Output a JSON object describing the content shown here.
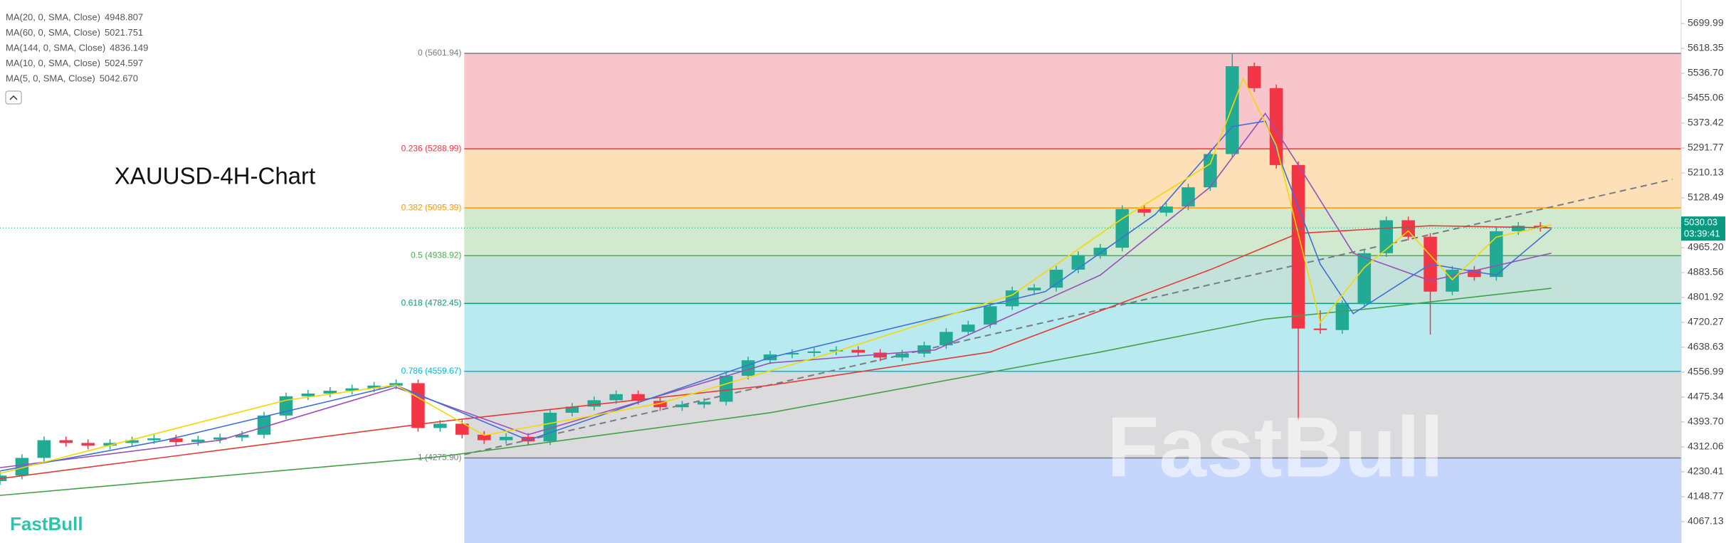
{
  "chart_data": {
    "type": "candlestick",
    "title": "XAUUSD-4H-Chart",
    "ylim": [
      3997,
      5777
    ],
    "xlim": [
      0,
      76.4
    ],
    "yticks": [
      5699.99,
      5618.35,
      {
        "value": 5536.7,
        "label": "5536.70"
      },
      5455.06,
      5373.42,
      5291.77,
      5210.13,
      5128.49,
      {
        "value": 4965.2,
        "label": "4965.20"
      },
      4883.56,
      4801.92,
      4720.27,
      4638.63,
      4556.99,
      4475.34,
      {
        "value": 4393.7,
        "label": "4393.70"
      },
      4312.06,
      4230.41,
      4148.77,
      4067.13
    ],
    "up_color": "#22ab94",
    "down_color": "#f23645",
    "candles": {
      "open": [
        4200,
        4218,
        4276,
        4334,
        4325,
        4316,
        4325,
        4334,
        4340,
        4328,
        4336,
        4343,
        4352,
        4415,
        4478,
        4487,
        4496,
        4504,
        4513,
        4521,
        4374,
        4388,
        4352,
        4334,
        4345,
        4330,
        4424,
        4444,
        4465,
        4485,
        4463,
        4442,
        4451,
        4460,
        4545,
        4596,
        4615,
        4620,
        4625,
        4630,
        4621,
        4605,
        4618,
        4645,
        4689,
        4713,
        4773,
        4825,
        4834,
        4893,
        4941,
        4965,
        5092,
        5080,
        5100,
        5163,
        5272,
        5560,
        5488,
        5236,
        4700,
        4695,
        4780,
        4947,
        5055,
        5001,
        4821,
        4893,
        4869,
        5019,
        5037
      ],
      "high": [
        4230,
        4288,
        4346,
        4346,
        4337,
        4337,
        4346,
        4352,
        4352,
        4348,
        4355,
        4364,
        4427,
        4490,
        4499,
        4508,
        4516,
        4525,
        4533,
        4533,
        4400,
        4400,
        4364,
        4357,
        4357,
        4436,
        4456,
        4477,
        4497,
        4497,
        4475,
        4463,
        4472,
        4557,
        4608,
        4627,
        4632,
        4637,
        4642,
        4642,
        4633,
        4630,
        4657,
        4701,
        4725,
        4785,
        4837,
        4846,
        4905,
        4953,
        4977,
        5104,
        5104,
        5112,
        5175,
        5284,
        5602,
        5572,
        5500,
        5248,
        4760,
        4792,
        4959,
        5067,
        5067,
        5013,
        4905,
        4905,
        5031,
        5049,
        5049
      ],
      "low": [
        4188,
        4206,
        4264,
        4313,
        4304,
        4304,
        4313,
        4322,
        4316,
        4316,
        4324,
        4331,
        4340,
        4403,
        4466,
        4475,
        4484,
        4492,
        4501,
        4362,
        4362,
        4340,
        4322,
        4322,
        4318,
        4318,
        4412,
        4432,
        4453,
        4451,
        4430,
        4430,
        4439,
        4448,
        4533,
        4584,
        4603,
        4608,
        4613,
        4609,
        4593,
        4593,
        4606,
        4633,
        4677,
        4701,
        4761,
        4813,
        4822,
        4881,
        4929,
        4953,
        5068,
        5068,
        5088,
        5151,
        5260,
        5476,
        5224,
        4400,
        4683,
        4683,
        4768,
        4935,
        4989,
        4680,
        4809,
        4857,
        4857,
        5007,
        5018
      ],
      "close": [
        4218,
        4276,
        4334,
        4325,
        4316,
        4325,
        4334,
        4340,
        4328,
        4336,
        4343,
        4352,
        4415,
        4478,
        4487,
        4496,
        4504,
        4513,
        4521,
        4374,
        4388,
        4352,
        4334,
        4345,
        4330,
        4424,
        4444,
        4465,
        4485,
        4463,
        4442,
        4451,
        4460,
        4545,
        4596,
        4615,
        4620,
        4625,
        4630,
        4621,
        4605,
        4618,
        4645,
        4689,
        4713,
        4773,
        4825,
        4834,
        4893,
        4941,
        4965,
        5092,
        5080,
        5100,
        5163,
        5272,
        5560,
        5488,
        5236,
        4700,
        4695,
        4780,
        4947,
        5055,
        5001,
        4821,
        4893,
        4869,
        5019,
        5037,
        5030.03
      ]
    },
    "series": [
      {
        "name": "MA(20, 0, SMA, Close)",
        "color": "#9c4fb8",
        "value_label": "4948.807",
        "x": [
          0,
          10,
          18,
          24,
          35,
          42.5,
          50,
          55,
          57.5,
          59,
          61.5,
          65,
          70.5
        ],
        "values": [
          4244,
          4334,
          4507,
          4352,
          4587,
          4630,
          4875,
          5164,
          5405,
          5236,
          4947,
          4857,
          4947
        ]
      },
      {
        "name": "MA(60, 0, SMA, Close)",
        "color": "#e53935",
        "value_label": "5021.751",
        "x": [
          0,
          20,
          35,
          45,
          55,
          59,
          65,
          70.5
        ],
        "values": [
          4208,
          4395,
          4514,
          4623,
          4893,
          5012,
          5037,
          5030
        ]
      },
      {
        "name": "MA(144, 0, SMA, Close)",
        "color": "#43a047",
        "value_label": "4836.149",
        "x": [
          0,
          20,
          35,
          50,
          57.5,
          62.5,
          70.5
        ],
        "values": [
          4153,
          4280,
          4424,
          4623,
          4731,
          4767,
          4832
        ]
      },
      {
        "name": "MA(10, 0, SMA, Close)",
        "color": "#3f6fd8",
        "value_label": "5024.597",
        "x": [
          0,
          7.5,
          18,
          24,
          35,
          47.5,
          52.5,
          56,
          57.5,
          60,
          61.5,
          65,
          68,
          70.5
        ],
        "values": [
          4233,
          4334,
          4514,
          4334,
          4605,
          4821,
          5074,
          5362,
          5380,
          4911,
          4749,
          4911,
          4875,
          5027
        ]
      },
      {
        "name": "MA(5, 0, SMA, Close)",
        "color": "#f5d800",
        "value_label": "5042.670",
        "x": [
          0,
          13,
          18,
          22,
          30,
          38,
          46,
          51,
          55,
          56.5,
          58,
          60,
          62,
          64,
          66,
          68,
          70.5
        ],
        "values": [
          4225,
          4465,
          4515,
          4350,
          4455,
          4625,
          4810,
          5060,
          5240,
          5520,
          5300,
          4720,
          4900,
          5020,
          4860,
          5000,
          5040
        ]
      }
    ],
    "fib": {
      "start_x": 21.1,
      "below_fill": "#c5d5fb",
      "levels": [
        {
          "label": "0 (5601.94)",
          "value": 5601.94,
          "color": "#787b86",
          "fill": "#f8c5cb"
        },
        {
          "label": "0.236 (5288.99)",
          "value": 5288.99,
          "color": "#f23645",
          "fill": "#fde0b8"
        },
        {
          "label": "0.382 (5095.39)",
          "value": 5095.39,
          "color": "#ff9800",
          "fill": "#d0e9cf"
        },
        {
          "label": "0.5 (4938.92)",
          "value": 4938.92,
          "color": "#4caf50",
          "fill": "#c3e3da"
        },
        {
          "label": "0.618 (4782.45)",
          "value": 4782.45,
          "color": "#089981",
          "fill": "#b9eaf0"
        },
        {
          "label": "0.786 (4559.67)",
          "value": 4559.67,
          "color": "#00bcd4",
          "fill": "#dbdbdd"
        },
        {
          "label": "1 (4275.90)",
          "value": 4275.9,
          "color": "#787b86",
          "fill": "#c5d5fb"
        }
      ]
    },
    "trendline": {
      "x": [
        21.1,
        76
      ],
      "y": [
        4287,
        5189
      ],
      "color": "#787b86"
    },
    "last_price": {
      "value": 5030.03,
      "countdown": "03:39:41",
      "color": "#089981"
    },
    "watermark": "FastBull",
    "brand": "FastBull"
  }
}
